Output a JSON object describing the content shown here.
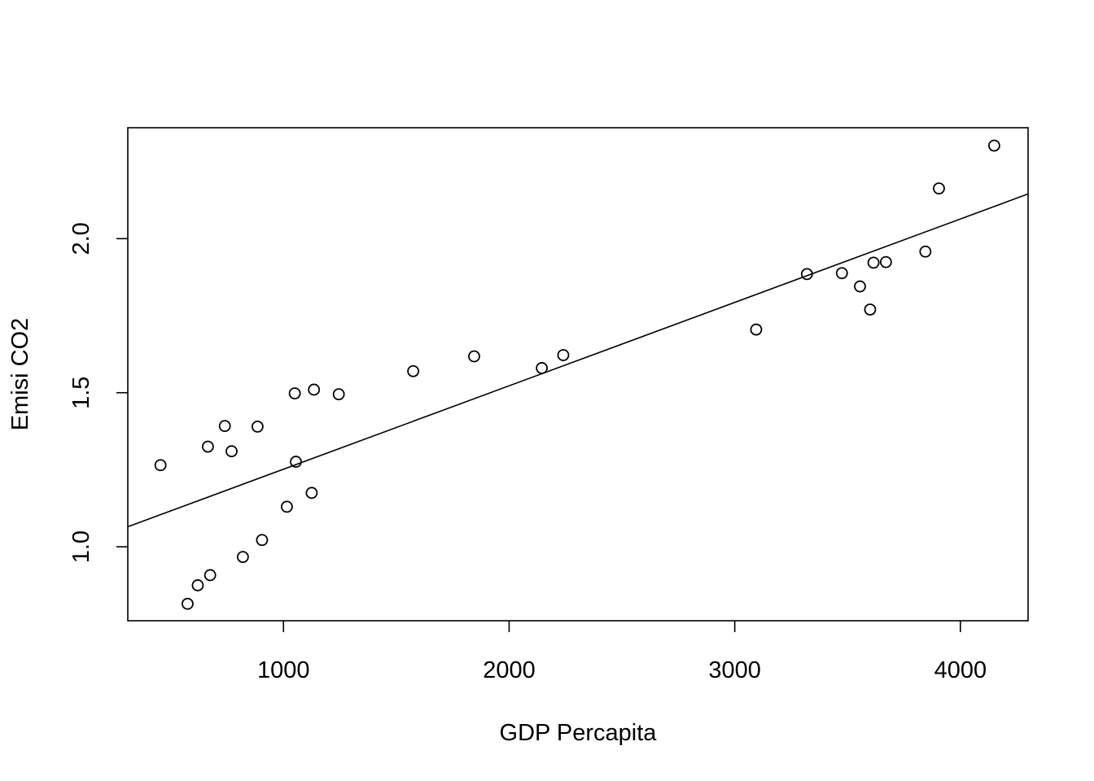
{
  "chart_data": {
    "type": "scatter",
    "title": "",
    "xlabel": "GDP Percapita",
    "ylabel": "Emisi CO2",
    "xlim": [
      310,
      4300
    ],
    "ylim": [
      0.76,
      2.36
    ],
    "xticks": [
      1000,
      2000,
      3000,
      4000
    ],
    "xtick_labels": [
      "1000",
      "2000",
      "3000",
      "4000"
    ],
    "yticks": [
      1.0,
      1.5,
      2.0
    ],
    "ytick_labels": [
      "1.0",
      "1.5",
      "2.0"
    ],
    "grid": false,
    "legend": "none",
    "points": [
      {
        "x": 455,
        "y": 1.265
      },
      {
        "x": 575,
        "y": 0.815
      },
      {
        "x": 620,
        "y": 0.875
      },
      {
        "x": 665,
        "y": 1.325
      },
      {
        "x": 675,
        "y": 0.908
      },
      {
        "x": 740,
        "y": 1.392
      },
      {
        "x": 770,
        "y": 1.31
      },
      {
        "x": 820,
        "y": 0.967
      },
      {
        "x": 885,
        "y": 1.39
      },
      {
        "x": 905,
        "y": 1.022
      },
      {
        "x": 1015,
        "y": 1.13
      },
      {
        "x": 1050,
        "y": 1.498
      },
      {
        "x": 1055,
        "y": 1.276
      },
      {
        "x": 1125,
        "y": 1.175
      },
      {
        "x": 1135,
        "y": 1.51
      },
      {
        "x": 1245,
        "y": 1.495
      },
      {
        "x": 1575,
        "y": 1.57
      },
      {
        "x": 1845,
        "y": 1.618
      },
      {
        "x": 2145,
        "y": 1.58
      },
      {
        "x": 2240,
        "y": 1.622
      },
      {
        "x": 3095,
        "y": 1.705
      },
      {
        "x": 3320,
        "y": 1.885
      },
      {
        "x": 3475,
        "y": 1.888
      },
      {
        "x": 3555,
        "y": 1.845
      },
      {
        "x": 3600,
        "y": 1.77
      },
      {
        "x": 3615,
        "y": 1.922
      },
      {
        "x": 3670,
        "y": 1.924
      },
      {
        "x": 3845,
        "y": 1.958
      },
      {
        "x": 3905,
        "y": 2.163
      },
      {
        "x": 4150,
        "y": 2.302
      }
    ],
    "fit_line": {
      "x": [
        310,
        4300
      ],
      "y": [
        1.065,
        2.145
      ]
    }
  }
}
